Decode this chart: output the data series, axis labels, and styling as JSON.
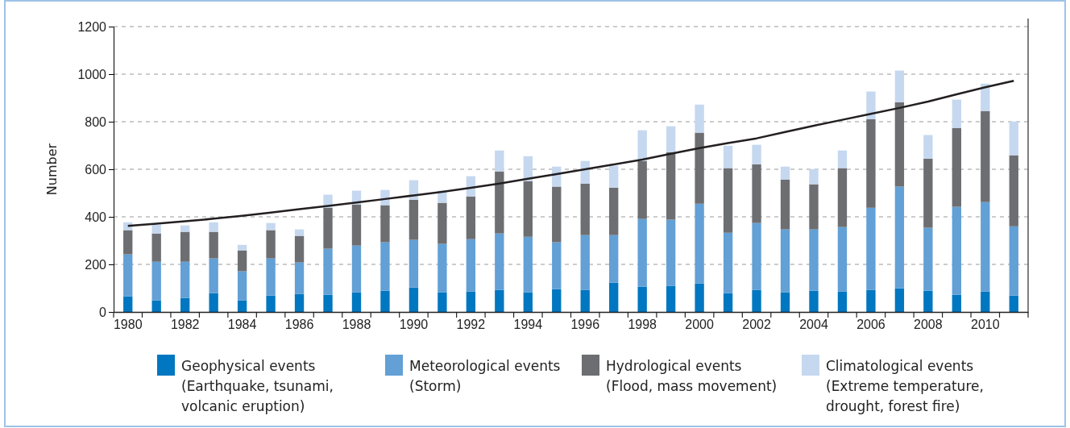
{
  "chart_data": {
    "type": "bar",
    "stacked": true,
    "ylabel": "Number",
    "categories": [
      "1980",
      null,
      "1982",
      null,
      "1984",
      null,
      "1986",
      null,
      "1988",
      null,
      "1990",
      null,
      "1992",
      null,
      "1994",
      null,
      "1996",
      null,
      "1998",
      null,
      "2000",
      null,
      "2002",
      null,
      "2004",
      null,
      "2006",
      null,
      "2008",
      null,
      "2010",
      null
    ],
    "ylim": [
      0,
      1200
    ],
    "yticks": [
      0,
      200,
      400,
      600,
      800,
      1000,
      1200
    ],
    "grid": "y",
    "legend": "bottom",
    "series": [
      {
        "name": "Geophysical events\n(Earthquake, tsunami,\nvolcanic eruption)",
        "color": "#0077c0",
        "values": [
          66,
          49,
          59,
          79,
          49,
          69,
          76,
          72,
          82,
          89,
          103,
          82,
          86,
          93,
          82,
          96,
          93,
          123,
          106,
          110,
          120,
          79,
          93,
          82,
          89,
          86,
          93,
          99,
          89,
          72,
          86,
          69
        ]
      },
      {
        "name": "Meteorological events\n(Storm)",
        "color": "#62a0d6",
        "values": [
          176,
          162,
          152,
          146,
          122,
          156,
          132,
          194,
          197,
          204,
          200,
          204,
          220,
          237,
          234,
          197,
          230,
          200,
          285,
          278,
          335,
          254,
          281,
          265,
          258,
          271,
          345,
          428,
          265,
          370,
          376,
          291
        ]
      },
      {
        "name": "Hydrological events\n(Flood, mass movement)",
        "color": "#6d6e72",
        "values": [
          102,
          119,
          126,
          112,
          88,
          119,
          112,
          172,
          173,
          156,
          169,
          173,
          180,
          261,
          234,
          234,
          217,
          200,
          244,
          284,
          299,
          272,
          247,
          210,
          190,
          248,
          373,
          355,
          291,
          332,
          383,
          299
        ]
      },
      {
        "name": "Climatological events\n(Extreme temperature,\ndrought, forest fire)",
        "color": "#c5d8ef",
        "values": [
          33,
          37,
          27,
          40,
          23,
          30,
          27,
          55,
          58,
          64,
          82,
          51,
          85,
          88,
          105,
          84,
          95,
          92,
          129,
          109,
          118,
          94,
          82,
          54,
          64,
          74,
          116,
          133,
          99,
          119,
          115,
          142
        ]
      },
      {
        "type": "line",
        "color": "#231f20",
        "values": [
          362,
          371,
          381,
          392,
          404,
          418,
          432,
          446,
          460,
          475,
          490,
          505,
          522,
          540,
          560,
          580,
          600,
          620,
          641,
          665,
          689,
          710,
          730,
          757,
          783,
          808,
          833,
          858,
          885,
          915,
          945,
          972
        ]
      }
    ]
  }
}
